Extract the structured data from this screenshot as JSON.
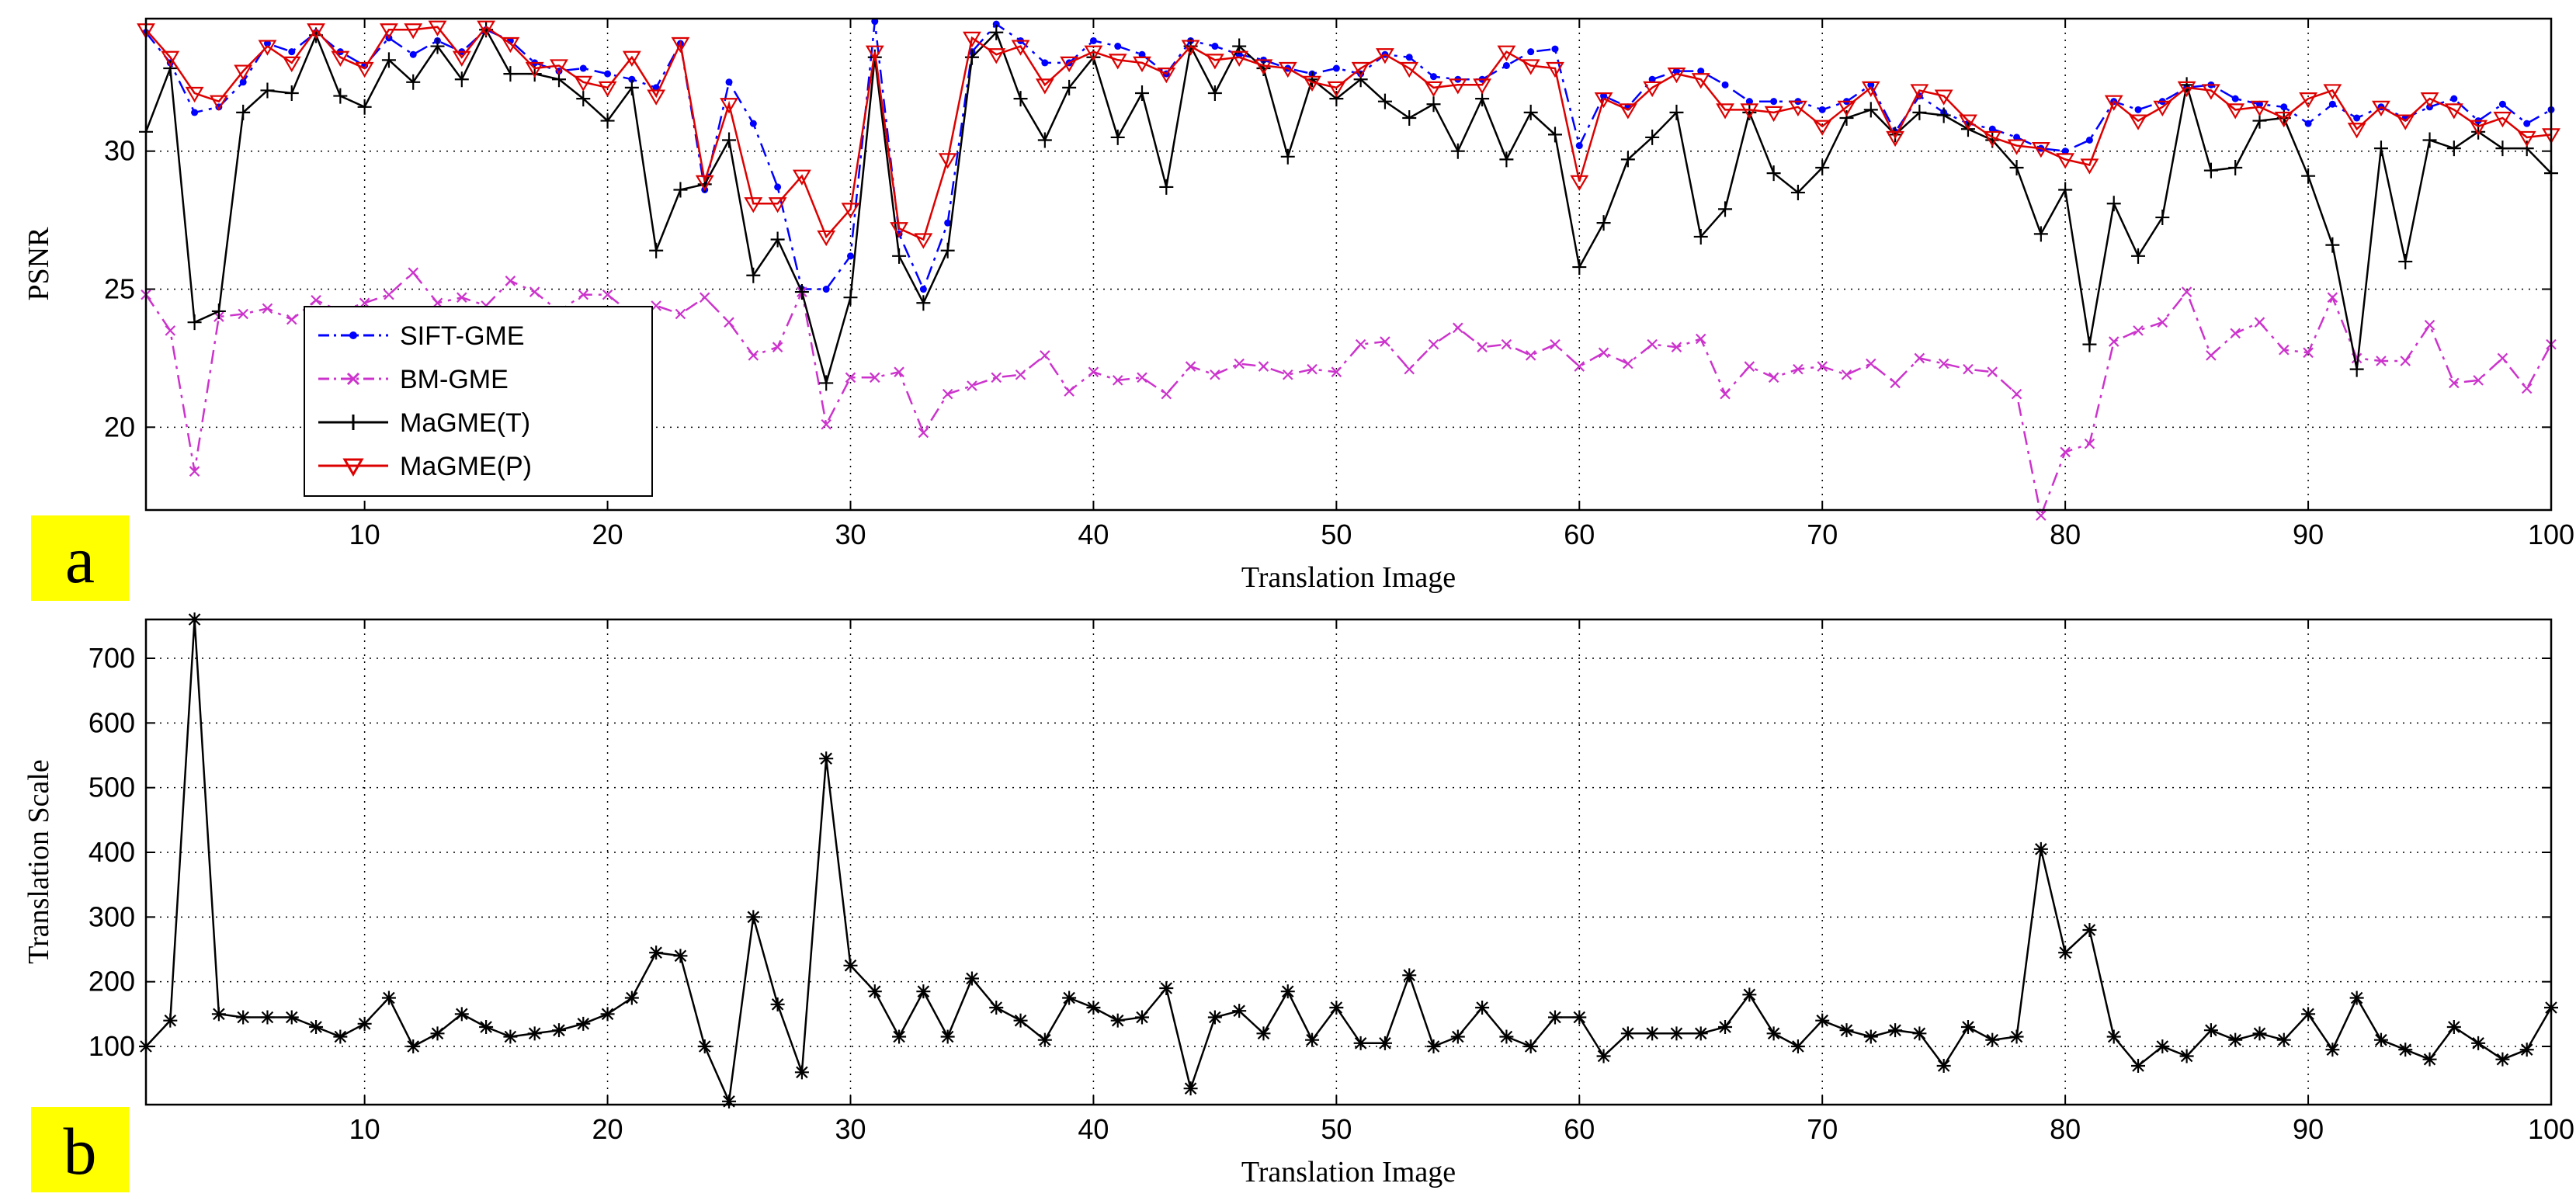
{
  "chart_data": [
    {
      "type": "line",
      "panel_label": "a",
      "xlabel": "Translation Image",
      "ylabel": "PSNR",
      "xlim": [
        1,
        100
      ],
      "ylim": [
        17,
        34.8
      ],
      "x_ticks": [
        "10",
        "20",
        "30",
        "40",
        "50",
        "60",
        "70",
        "80",
        "90",
        "100"
      ],
      "y_ticks": [
        "20",
        "25",
        "30"
      ],
      "grid": true,
      "legend_position": "lower-left inside",
      "x": [
        1,
        2,
        3,
        4,
        5,
        6,
        7,
        8,
        9,
        10,
        11,
        12,
        13,
        14,
        15,
        16,
        17,
        18,
        19,
        20,
        21,
        22,
        23,
        24,
        25,
        26,
        27,
        28,
        29,
        30,
        31,
        32,
        33,
        34,
        35,
        36,
        37,
        38,
        39,
        40,
        41,
        42,
        43,
        44,
        45,
        46,
        47,
        48,
        49,
        50,
        51,
        52,
        53,
        54,
        55,
        56,
        57,
        58,
        59,
        60,
        61,
        62,
        63,
        64,
        65,
        66,
        67,
        68,
        69,
        70,
        71,
        72,
        73,
        74,
        75,
        76,
        77,
        78,
        79,
        80,
        81,
        82,
        83,
        84,
        85,
        86,
        87,
        88,
        89,
        90,
        91,
        92,
        93,
        94,
        95,
        96,
        97,
        98,
        99,
        100
      ],
      "series": [
        {
          "name": "SIFT-GME",
          "color": "#0000ff",
          "marker": "dot",
          "dash": "dashdot",
          "values": [
            34.3,
            33.2,
            31.4,
            31.6,
            32.5,
            33.9,
            33.6,
            34.3,
            33.6,
            33.1,
            34.1,
            33.5,
            34.0,
            33.6,
            34.4,
            34.0,
            33.2,
            32.9,
            33.0,
            32.8,
            32.6,
            32.3,
            33.9,
            28.6,
            32.5,
            31.0,
            28.7,
            25.0,
            25.0,
            26.2,
            34.7,
            27.0,
            25.0,
            27.4,
            33.6,
            34.6,
            34.0,
            33.2,
            33.2,
            34.0,
            33.8,
            33.5,
            32.8,
            34.0,
            33.8,
            33.5,
            33.3,
            33.0,
            32.8,
            33.0,
            32.8,
            33.5,
            33.4,
            32.7,
            32.6,
            32.6,
            33.1,
            33.6,
            33.7,
            30.2,
            32.0,
            31.6,
            32.6,
            32.9,
            32.9,
            32.4,
            31.8,
            31.8,
            31.8,
            31.5,
            31.8,
            32.4,
            30.7,
            32.0,
            31.4,
            31.0,
            30.8,
            30.5,
            30.1,
            30.0,
            30.4,
            31.8,
            31.5,
            31.8,
            32.3,
            32.4,
            31.9,
            31.7,
            31.6,
            31.0,
            31.7,
            31.2,
            31.6,
            31.2,
            31.6,
            31.9,
            31.1,
            31.7,
            31.0,
            31.5
          ]
        },
        {
          "name": "BM-GME",
          "color": "#cc33cc",
          "marker": "x",
          "dash": "dashdot",
          "values": [
            24.8,
            23.5,
            18.4,
            24.0,
            24.1,
            24.3,
            23.9,
            24.6,
            24.2,
            24.5,
            24.8,
            25.6,
            24.5,
            24.7,
            24.4,
            25.3,
            24.9,
            24.2,
            24.8,
            24.8,
            24.1,
            24.4,
            24.1,
            24.7,
            23.8,
            22.6,
            22.9,
            24.9,
            20.1,
            21.8,
            21.8,
            22.0,
            19.8,
            21.2,
            21.5,
            21.8,
            21.9,
            22.6,
            21.3,
            22.0,
            21.7,
            21.8,
            21.2,
            22.2,
            21.9,
            22.3,
            22.2,
            21.9,
            22.1,
            22.0,
            23.0,
            23.1,
            22.1,
            23.0,
            23.6,
            22.9,
            23.0,
            22.6,
            23.0,
            22.2,
            22.7,
            22.3,
            23.0,
            22.9,
            23.2,
            21.2,
            22.2,
            21.8,
            22.1,
            22.2,
            21.9,
            22.3,
            21.6,
            22.5,
            22.3,
            22.1,
            22.0,
            21.2,
            16.8,
            19.1,
            19.4,
            23.1,
            23.5,
            23.8,
            24.9,
            22.6,
            23.4,
            23.8,
            22.8,
            22.7,
            24.7,
            22.5,
            22.4,
            22.4,
            23.7,
            21.6,
            21.7,
            22.5,
            21.4,
            23.0
          ]
        },
        {
          "name": "MaGME(T)",
          "color": "#000000",
          "marker": "plus",
          "dash": "solid",
          "values": [
            30.7,
            33.0,
            23.8,
            24.2,
            31.4,
            32.2,
            32.1,
            34.2,
            32.0,
            31.6,
            33.3,
            32.5,
            33.8,
            32.6,
            34.4,
            32.8,
            32.8,
            32.6,
            31.9,
            31.1,
            32.3,
            26.4,
            28.6,
            28.8,
            30.4,
            25.5,
            26.8,
            24.9,
            21.6,
            24.7,
            33.4,
            26.2,
            24.5,
            26.4,
            33.4,
            34.3,
            31.9,
            30.4,
            32.3,
            33.4,
            30.5,
            32.1,
            28.7,
            33.8,
            32.1,
            33.8,
            33.0,
            29.8,
            32.6,
            31.9,
            32.6,
            31.8,
            31.2,
            31.7,
            30.0,
            31.9,
            29.7,
            31.4,
            30.6,
            25.8,
            27.4,
            29.7,
            30.5,
            31.4,
            26.9,
            27.9,
            31.4,
            29.2,
            28.5,
            29.4,
            31.2,
            31.5,
            30.6,
            31.4,
            31.3,
            30.8,
            30.4,
            29.4,
            27.0,
            28.6,
            23.0,
            28.1,
            26.2,
            27.6,
            32.4,
            29.3,
            29.4,
            31.1,
            31.2,
            29.1,
            26.6,
            22.1,
            30.1,
            26.0,
            30.4,
            30.1,
            30.7,
            30.1,
            30.1,
            29.2
          ]
        },
        {
          "name": "MaGME(P)",
          "color": "#dd0000",
          "marker": "triangle-down",
          "dash": "solid",
          "values": [
            34.4,
            33.4,
            32.1,
            31.8,
            32.9,
            33.8,
            33.2,
            34.4,
            33.4,
            33.0,
            34.4,
            34.4,
            34.5,
            33.4,
            34.5,
            33.9,
            33.0,
            33.1,
            32.5,
            32.3,
            33.4,
            32.0,
            33.9,
            28.9,
            31.7,
            28.1,
            28.1,
            29.1,
            26.9,
            27.9,
            33.6,
            27.2,
            26.8,
            29.7,
            34.1,
            33.5,
            33.8,
            32.4,
            33.2,
            33.6,
            33.3,
            33.2,
            32.8,
            33.8,
            33.3,
            33.4,
            33.1,
            33.0,
            32.5,
            32.3,
            33.0,
            33.5,
            33.0,
            32.3,
            32.4,
            32.4,
            33.6,
            33.1,
            33.0,
            28.9,
            31.9,
            31.5,
            32.3,
            32.8,
            32.6,
            31.5,
            31.5,
            31.4,
            31.6,
            30.9,
            31.6,
            32.3,
            30.5,
            32.2,
            32.0,
            31.1,
            30.5,
            30.2,
            30.1,
            29.7,
            29.5,
            31.8,
            31.1,
            31.6,
            32.3,
            32.2,
            31.5,
            31.6,
            31.2,
            31.9,
            32.2,
            30.8,
            31.6,
            31.1,
            31.9,
            31.5,
            30.9,
            31.2,
            30.5,
            30.6
          ]
        }
      ]
    },
    {
      "type": "line",
      "panel_label": "b",
      "xlabel": "Translation Image",
      "ylabel": "Translation Scale",
      "xlim": [
        1,
        100
      ],
      "ylim": [
        10,
        760
      ],
      "x_ticks": [
        "10",
        "20",
        "30",
        "40",
        "50",
        "60",
        "70",
        "80",
        "90",
        "100"
      ],
      "y_ticks": [
        "100",
        "200",
        "300",
        "400",
        "500",
        "600",
        "700"
      ],
      "grid": true,
      "x": [
        1,
        2,
        3,
        4,
        5,
        6,
        7,
        8,
        9,
        10,
        11,
        12,
        13,
        14,
        15,
        16,
        17,
        18,
        19,
        20,
        21,
        22,
        23,
        24,
        25,
        26,
        27,
        28,
        29,
        30,
        31,
        32,
        33,
        34,
        35,
        36,
        37,
        38,
        39,
        40,
        41,
        42,
        43,
        44,
        45,
        46,
        47,
        48,
        49,
        50,
        51,
        52,
        53,
        54,
        55,
        56,
        57,
        58,
        59,
        60,
        61,
        62,
        63,
        64,
        65,
        66,
        67,
        68,
        69,
        70,
        71,
        72,
        73,
        74,
        75,
        76,
        77,
        78,
        79,
        80,
        81,
        82,
        83,
        84,
        85,
        86,
        87,
        88,
        89,
        90,
        91,
        92,
        93,
        94,
        95,
        96,
        97,
        98,
        99,
        100
      ],
      "series": [
        {
          "color": "#000000",
          "marker": "star",
          "values": [
            100,
            140,
            760,
            150,
            145,
            145,
            145,
            130,
            115,
            135,
            175,
            100,
            120,
            150,
            130,
            115,
            120,
            125,
            135,
            150,
            175,
            245,
            240,
            100,
            15,
            300,
            165,
            60,
            545,
            225,
            185,
            115,
            185,
            115,
            205,
            160,
            140,
            110,
            175,
            160,
            140,
            145,
            190,
            35,
            145,
            155,
            120,
            185,
            110,
            160,
            105,
            105,
            210,
            100,
            115,
            160,
            115,
            100,
            145,
            145,
            85,
            120,
            120,
            120,
            120,
            130,
            180,
            120,
            100,
            140,
            125,
            115,
            125,
            120,
            70,
            130,
            110,
            115,
            405,
            245,
            280,
            115,
            70,
            100,
            85,
            125,
            110,
            120,
            110,
            150,
            95,
            175,
            110,
            95,
            80,
            130,
            105,
            80,
            95,
            160
          ]
        }
      ]
    }
  ],
  "legend": {
    "items": [
      "SIFT-GME",
      "BM-GME",
      "MaGME(T)",
      "MaGME(P)"
    ]
  }
}
